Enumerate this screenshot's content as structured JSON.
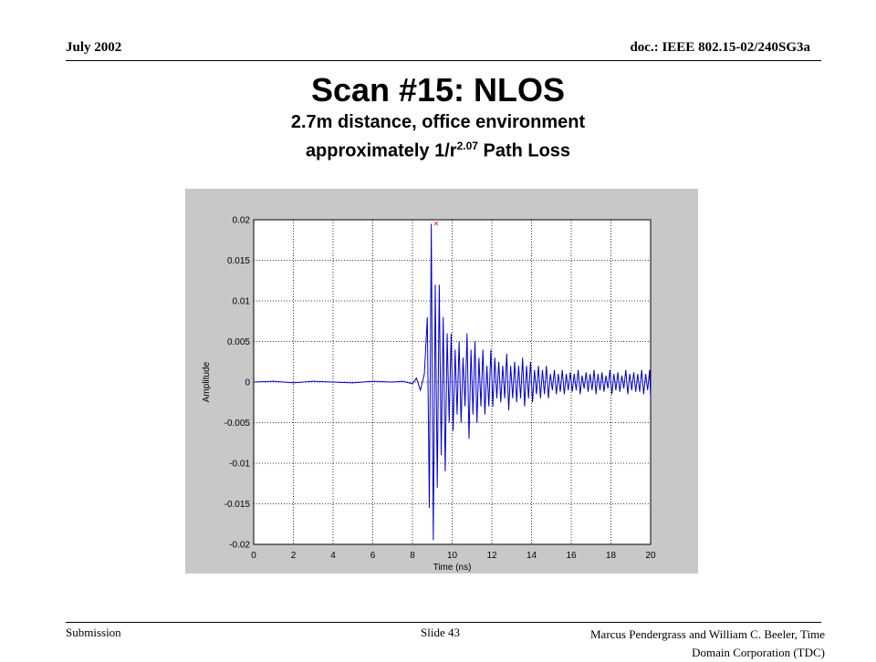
{
  "header": {
    "date": "July 2002",
    "doc": "doc.: IEEE 802.15-02/240SG3a"
  },
  "title": "Scan #15:  NLOS",
  "subtitle_1": "2.7m distance, office environment",
  "subtitle_2_prefix": "approximately 1/r",
  "subtitle_2_exponent": "2.07",
  "subtitle_2_suffix": " Path Loss",
  "footer": {
    "left": "Submission",
    "middle": "Slide 43",
    "right_line1": "Marcus Pendergrass and William  C. Beeler, Time",
    "right_line2": "Domain Corporation (TDC)"
  },
  "chart_data": {
    "type": "line",
    "xlabel": "Time (ns)",
    "ylabel": "Amplitude",
    "xlim": [
      0,
      20
    ],
    "ylim": [
      -0.02,
      0.02
    ],
    "xticks": [
      "0",
      "2",
      "4",
      "6",
      "8",
      "10",
      "12",
      "14",
      "16",
      "18",
      "20"
    ],
    "yticks": [
      "0.02",
      "0.015",
      "0.01",
      "0.005",
      "0",
      "-0.005",
      "-0.01",
      "-0.015",
      "-0.02"
    ],
    "grid": true,
    "line_color": "#0000cc",
    "marker": {
      "x": 9.2,
      "y": 0.0195,
      "symbol": "x",
      "color": "#ff0000"
    },
    "series": [
      {
        "values_x": [
          0,
          1,
          2,
          3,
          4,
          5,
          6,
          7,
          7.5,
          8,
          8.2,
          8.4,
          8.6,
          8.75,
          8.85,
          8.95,
          9.05,
          9.15,
          9.25,
          9.35,
          9.45,
          9.55,
          9.65,
          9.75,
          9.85,
          9.95,
          10.05,
          10.15,
          10.25,
          10.35,
          10.45,
          10.55,
          10.65,
          10.75,
          10.85,
          10.95,
          11.05,
          11.15,
          11.25,
          11.35,
          11.45,
          11.55,
          11.65,
          11.75,
          11.85,
          11.95,
          12.05,
          12.15,
          12.25,
          12.35,
          12.45,
          12.55,
          12.65,
          12.75,
          12.85,
          12.95,
          13.05,
          13.15,
          13.25,
          13.35,
          13.45,
          13.55,
          13.65,
          13.75,
          13.85,
          13.95,
          14.05,
          14.15,
          14.25,
          14.35,
          14.45,
          14.55,
          14.65,
          14.75,
          14.85,
          14.95,
          15.05,
          15.15,
          15.25,
          15.35,
          15.45,
          15.55,
          15.65,
          15.75,
          15.85,
          15.95,
          16.05,
          16.15,
          16.25,
          16.35,
          16.45,
          16.55,
          16.65,
          16.75,
          16.85,
          16.95,
          17.05,
          17.15,
          17.25,
          17.35,
          17.45,
          17.55,
          17.65,
          17.75,
          17.85,
          17.95,
          18.05,
          18.15,
          18.25,
          18.35,
          18.45,
          18.55,
          18.65,
          18.75,
          18.85,
          18.95,
          19.05,
          19.15,
          19.25,
          19.35,
          19.45,
          19.55,
          19.65,
          19.75,
          19.85,
          19.95,
          20
        ],
        "values_y": [
          0,
          0.0001,
          -0.0001,
          0.0001,
          0,
          -0.0001,
          0.0001,
          0,
          0.0001,
          -0.0002,
          0.0005,
          -0.001,
          0.001,
          0.008,
          -0.0155,
          0.0195,
          -0.0195,
          0.012,
          -0.013,
          0.012,
          -0.009,
          0.008,
          -0.011,
          0.006,
          -0.005,
          0.006,
          -0.006,
          0.004,
          -0.004,
          0.005,
          -0.005,
          0.003,
          -0.003,
          0.006,
          -0.007,
          0.004,
          -0.004,
          0.005,
          -0.005,
          0.003,
          -0.003,
          0.004,
          -0.004,
          0.002,
          -0.003,
          0.004,
          -0.003,
          0.003,
          -0.002,
          0.0025,
          -0.0025,
          0.002,
          -0.002,
          0.0035,
          -0.0035,
          0.002,
          -0.002,
          0.0025,
          -0.0025,
          0.002,
          -0.002,
          0.003,
          -0.003,
          0.002,
          -0.002,
          0.0025,
          -0.0025,
          0.0015,
          -0.0015,
          0.002,
          -0.002,
          0.0015,
          -0.0015,
          0.002,
          -0.002,
          0.001,
          -0.001,
          0.0015,
          -0.0015,
          0.001,
          -0.0012,
          0.0015,
          -0.0015,
          0.001,
          -0.001,
          0.0012,
          -0.0012,
          0.001,
          -0.001,
          0.0015,
          -0.0015,
          0.0008,
          -0.0008,
          0.0012,
          -0.0012,
          0.001,
          -0.001,
          0.0015,
          -0.0015,
          0.001,
          -0.001,
          0.0012,
          -0.0012,
          0.0008,
          -0.0008,
          0.0015,
          -0.0015,
          0.001,
          -0.001,
          0.0012,
          -0.0012,
          0.0008,
          -0.0008,
          0.0015,
          -0.0015,
          0.001,
          -0.001,
          0.0012,
          -0.0012,
          0.001,
          -0.0012,
          0.0015,
          -0.0015,
          0.001,
          -0.001,
          0.0015,
          -0.002
        ]
      }
    ]
  }
}
